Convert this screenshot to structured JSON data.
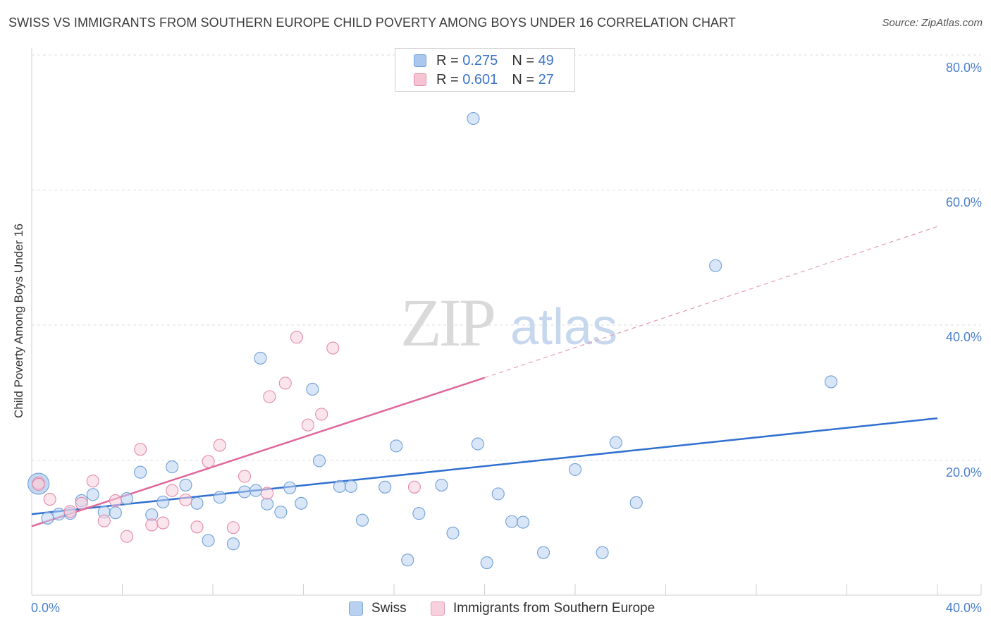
{
  "title": "SWISS VS IMMIGRANTS FROM SOUTHERN EUROPE CHILD POVERTY AMONG BOYS UNDER 16 CORRELATION CHART",
  "source": "Source: ZipAtlas.com",
  "watermark": {
    "zip": "ZIP",
    "atlas": "atlas"
  },
  "legend": {
    "rows": [
      {
        "r_label": "R =",
        "r_value": "0.275",
        "n_label": "N =",
        "n_value": "49",
        "color": "#aac8ee",
        "border": "#6f9fd8"
      },
      {
        "r_label": "R =",
        "r_value": "0.601",
        "n_label": "N =",
        "n_value": "27",
        "color": "#f6c3d3",
        "border": "#e48aa8"
      }
    ]
  },
  "bottom_legend": [
    {
      "label": "Swiss",
      "color": "#b9d1f0",
      "border": "#7ea6dc"
    },
    {
      "label": "Immigrants from Southern Europe",
      "color": "#f8cfdc",
      "border": "#e79ab4"
    }
  ],
  "axis": {
    "x_min_label": "0.0%",
    "x_max_label": "40.0%",
    "y_ticks": [
      "20.0%",
      "40.0%",
      "60.0%",
      "80.0%"
    ],
    "ylabel": "Child Poverty Among Boys Under 16"
  },
  "chart_data": {
    "type": "scatter",
    "title": "SWISS VS IMMIGRANTS FROM SOUTHERN EUROPE CHILD POVERTY AMONG BOYS UNDER 16 CORRELATION CHART",
    "xlabel": "",
    "ylabel": "Child Poverty Among Boys Under 16",
    "xlim": [
      0,
      40
    ],
    "ylim": [
      0,
      80
    ],
    "grid": true,
    "series": [
      {
        "name": "Swiss",
        "color": "#6f9fd8",
        "fill": "#b9d1f0",
        "points": [
          [
            0.3,
            16.5,
            "big"
          ],
          [
            0.7,
            11.4
          ],
          [
            1.2,
            12.0
          ],
          [
            1.7,
            12.1
          ],
          [
            2.2,
            14.0
          ],
          [
            2.7,
            14.9
          ],
          [
            3.2,
            12.3
          ],
          [
            3.7,
            12.2
          ],
          [
            4.2,
            14.3
          ],
          [
            4.8,
            18.2
          ],
          [
            5.3,
            11.9
          ],
          [
            5.8,
            13.8
          ],
          [
            6.2,
            19.0
          ],
          [
            6.8,
            16.3
          ],
          [
            7.3,
            13.6
          ],
          [
            7.8,
            8.1
          ],
          [
            8.3,
            14.5
          ],
          [
            8.9,
            7.6
          ],
          [
            9.4,
            15.3
          ],
          [
            9.9,
            15.5
          ],
          [
            10.1,
            35.1
          ],
          [
            10.4,
            13.5
          ],
          [
            11.0,
            12.3
          ],
          [
            11.4,
            15.9
          ],
          [
            11.9,
            13.6
          ],
          [
            12.4,
            30.5
          ],
          [
            12.7,
            19.9
          ],
          [
            13.6,
            16.1
          ],
          [
            14.1,
            16.1
          ],
          [
            14.6,
            11.1
          ],
          [
            15.6,
            16.0
          ],
          [
            16.1,
            22.1
          ],
          [
            16.6,
            5.2
          ],
          [
            17.1,
            12.1
          ],
          [
            18.1,
            16.3
          ],
          [
            18.6,
            9.2
          ],
          [
            19.5,
            70.6
          ],
          [
            19.7,
            22.4
          ],
          [
            20.1,
            4.8
          ],
          [
            20.6,
            15.0
          ],
          [
            21.2,
            10.9
          ],
          [
            21.7,
            10.8
          ],
          [
            22.6,
            6.3
          ],
          [
            24.0,
            18.6
          ],
          [
            25.2,
            6.3
          ],
          [
            25.8,
            22.6
          ],
          [
            26.7,
            13.7
          ],
          [
            30.2,
            48.8
          ],
          [
            35.3,
            31.6
          ]
        ],
        "trend": {
          "x": [
            0,
            40
          ],
          "y": [
            12.0,
            26.2
          ],
          "style": "solid"
        }
      },
      {
        "name": "Immigrants from Southern Europe",
        "color": "#e48aa8",
        "fill": "#f8cfdc",
        "points": [
          [
            0.3,
            16.6
          ],
          [
            0.8,
            14.2
          ],
          [
            1.7,
            12.4
          ],
          [
            2.2,
            13.6
          ],
          [
            2.7,
            16.9
          ],
          [
            3.2,
            11.0
          ],
          [
            3.7,
            14.0
          ],
          [
            4.2,
            8.7
          ],
          [
            4.8,
            21.6
          ],
          [
            5.3,
            10.4
          ],
          [
            5.8,
            10.7
          ],
          [
            6.2,
            15.5
          ],
          [
            6.8,
            14.1
          ],
          [
            7.3,
            10.1
          ],
          [
            7.8,
            19.8
          ],
          [
            8.3,
            22.2
          ],
          [
            8.9,
            10.0
          ],
          [
            9.4,
            17.6
          ],
          [
            10.4,
            15.1
          ],
          [
            10.5,
            29.4
          ],
          [
            11.2,
            31.4
          ],
          [
            11.7,
            38.2
          ],
          [
            12.2,
            25.2
          ],
          [
            12.8,
            26.8
          ],
          [
            13.3,
            36.6
          ],
          [
            16.9,
            16.0
          ],
          [
            0.3,
            16.4
          ]
        ],
        "trend": {
          "x": [
            0,
            20
          ],
          "y": [
            10.2,
            32.2
          ],
          "style": "solid",
          "extension": {
            "x": [
              20,
              40
            ],
            "y": [
              32.2,
              54.6
            ],
            "style": "dashed"
          }
        }
      }
    ]
  }
}
